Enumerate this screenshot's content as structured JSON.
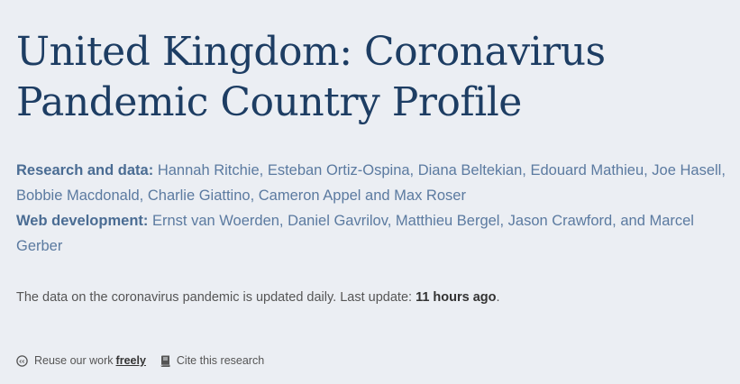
{
  "page": {
    "title": "United Kingdom: Coronavirus Pandemic Country Profile"
  },
  "credits": {
    "research_label": "Research and data:",
    "research_names": "Hannah Ritchie, Esteban Ortiz-Ospina, Diana Beltekian, Edouard Mathieu, Joe Hasell, Bobbie Macdonald, Charlie Giattino, Cameron Appel and Max Roser",
    "web_label": "Web development:",
    "web_names": "Ernst van Woerden, Daniel Gavrilov, Matthieu Bergel, Jason Crawford, and Marcel Gerber"
  },
  "update": {
    "text": "The data on the coronavirus pandemic is updated daily. Last update: ",
    "time": "11 hours ago",
    "suffix": "."
  },
  "tools": {
    "reuse_text": "Reuse our work",
    "reuse_link": "freely",
    "reuse_icon": "cc-icon",
    "cite_text": "Cite this research",
    "cite_icon": "book-icon"
  }
}
